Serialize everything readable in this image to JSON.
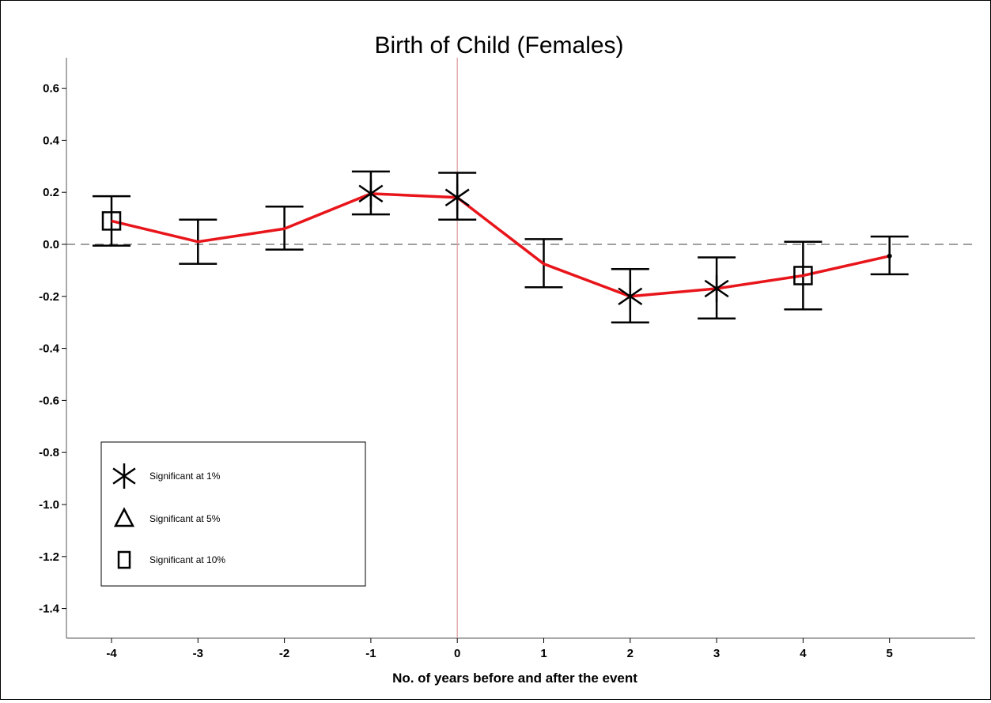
{
  "chart_data": {
    "type": "line",
    "title": "Birth of Child (Females)",
    "xlabel": "No. of years before and after the event",
    "ylabel": "",
    "x": [
      -4,
      -3,
      -2,
      -1,
      0,
      1,
      2,
      3,
      4,
      5
    ],
    "xticks": [
      "-4",
      "-3",
      "-2",
      "-1",
      "0",
      "1",
      "2",
      "3",
      "4",
      "5"
    ],
    "ylim": [
      -1.5,
      0.7
    ],
    "yticks": [
      "0.6",
      "0.4",
      "0.2",
      "0.0",
      "-0.2",
      "-0.4",
      "-0.6",
      "-0.8",
      "-1.0",
      "-1.2",
      "-1.4"
    ],
    "series": [
      {
        "color": "#e8151b",
        "values": [
          0.09,
          0.01,
          0.06,
          0.195,
          0.18,
          -0.075,
          -0.2,
          -0.17,
          -0.12,
          -0.045
        ],
        "ci_low": [
          -0.005,
          -0.075,
          -0.02,
          0.115,
          0.095,
          -0.165,
          -0.3,
          -0.285,
          -0.25,
          -0.115
        ],
        "ci_high": [
          0.185,
          0.095,
          0.145,
          0.28,
          0.275,
          0.02,
          -0.095,
          -0.05,
          0.01,
          0.03
        ],
        "markers": [
          "square",
          "none",
          "none",
          "asterisk",
          "asterisk",
          "none",
          "asterisk",
          "asterisk",
          "square",
          "dot"
        ]
      }
    ],
    "reference_lines": {
      "horizontal_y": 0.0,
      "vertical_x": 0,
      "vertical_color": "#e0a0a0"
    },
    "legend": {
      "placement": "lower-left",
      "entries": [
        {
          "label": "Significant at 1%",
          "icon": "asterisk-icon"
        },
        {
          "label": "Significant at 5%",
          "icon": "triangle-icon"
        },
        {
          "label": "Significant at 10%",
          "icon": "square-icon"
        }
      ]
    },
    "grid": false
  }
}
